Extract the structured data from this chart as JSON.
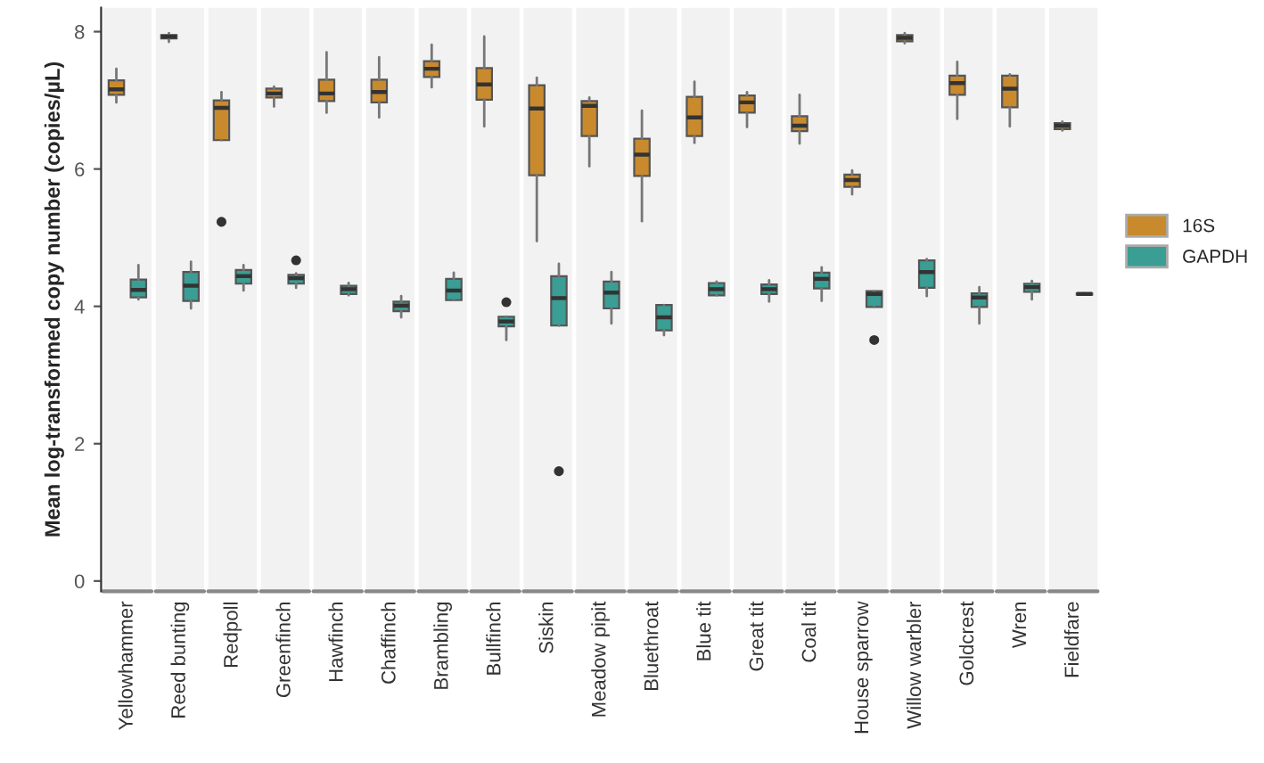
{
  "chart_data": {
    "type": "box",
    "ylabel": "Mean log-transformed copy number (copies/µL)",
    "categories": [
      "Yellowhammer",
      "Reed bunting",
      "Redpoll",
      "Greenfinch",
      "Hawfinch",
      "Chaffinch",
      "Brambling",
      "Bullfinch",
      "Siskin",
      "Meadow pipit",
      "Bluethroat",
      "Blue tit",
      "Great tit",
      "Coal tit",
      "House sparrow",
      "Willow warbler",
      "Goldcrest",
      "Wren",
      "Fieldfare"
    ],
    "ylim": [
      -0.15,
      8.35
    ],
    "yticks": [
      0,
      2,
      4,
      6,
      8
    ],
    "grid": false,
    "legend": "right",
    "series": [
      {
        "name": "16S",
        "color": "#c98a2e",
        "boxes": [
          {
            "low": 6.97,
            "q1": 7.08,
            "median": 7.16,
            "q3": 7.29,
            "high": 7.46
          },
          {
            "low": 7.85,
            "q1": 7.9,
            "median": 7.93,
            "q3": 7.95,
            "high": 7.98
          },
          {
            "low": 6.42,
            "q1": 6.42,
            "median": 6.89,
            "q3": 7.0,
            "high": 7.12,
            "outliers": [
              5.23
            ]
          },
          {
            "low": 6.91,
            "q1": 7.04,
            "median": 7.1,
            "q3": 7.17,
            "high": 7.2
          },
          {
            "low": 6.82,
            "q1": 6.99,
            "median": 7.1,
            "q3": 7.3,
            "high": 7.7
          },
          {
            "low": 6.75,
            "q1": 6.97,
            "median": 7.12,
            "q3": 7.3,
            "high": 7.63
          },
          {
            "low": 7.19,
            "q1": 7.34,
            "median": 7.46,
            "q3": 7.57,
            "high": 7.81
          },
          {
            "low": 6.62,
            "q1": 7.01,
            "median": 7.23,
            "q3": 7.47,
            "high": 7.93
          },
          {
            "low": 4.95,
            "q1": 5.91,
            "median": 6.88,
            "q3": 7.22,
            "high": 7.33
          },
          {
            "low": 6.04,
            "q1": 6.48,
            "median": 6.92,
            "q3": 6.99,
            "high": 7.04
          },
          {
            "low": 5.24,
            "q1": 5.9,
            "median": 6.21,
            "q3": 6.44,
            "high": 6.85
          },
          {
            "low": 6.38,
            "q1": 6.48,
            "median": 6.75,
            "q3": 7.05,
            "high": 7.27
          },
          {
            "low": 6.61,
            "q1": 6.82,
            "median": 6.97,
            "q3": 7.07,
            "high": 7.12
          },
          {
            "low": 6.37,
            "q1": 6.55,
            "median": 6.63,
            "q3": 6.77,
            "high": 7.08
          },
          {
            "low": 5.63,
            "q1": 5.74,
            "median": 5.84,
            "q3": 5.92,
            "high": 5.98
          },
          {
            "low": 7.83,
            "q1": 7.86,
            "median": 7.91,
            "q3": 7.95,
            "high": 7.98
          },
          {
            "low": 6.73,
            "q1": 7.08,
            "median": 7.25,
            "q3": 7.36,
            "high": 7.56
          },
          {
            "low": 6.62,
            "q1": 6.9,
            "median": 7.17,
            "q3": 7.36,
            "high": 7.38
          },
          {
            "low": 6.56,
            "q1": 6.58,
            "median": 6.63,
            "q3": 6.67,
            "high": 6.69
          }
        ]
      },
      {
        "name": "GAPDH",
        "color": "#3a9e94",
        "boxes": [
          {
            "low": 4.1,
            "q1": 4.13,
            "median": 4.24,
            "q3": 4.39,
            "high": 4.6
          },
          {
            "low": 3.97,
            "q1": 4.08,
            "median": 4.3,
            "q3": 4.5,
            "high": 4.65
          },
          {
            "low": 4.23,
            "q1": 4.33,
            "median": 4.44,
            "q3": 4.53,
            "high": 4.6
          },
          {
            "low": 4.27,
            "q1": 4.33,
            "median": 4.41,
            "q3": 4.46,
            "high": 4.48,
            "outliers": [
              4.67
            ]
          },
          {
            "low": 4.16,
            "q1": 4.18,
            "median": 4.25,
            "q3": 4.3,
            "high": 4.34
          },
          {
            "low": 3.84,
            "q1": 3.93,
            "median": 4.01,
            "q3": 4.07,
            "high": 4.15
          },
          {
            "low": 4.09,
            "q1": 4.09,
            "median": 4.23,
            "q3": 4.4,
            "high": 4.49
          },
          {
            "low": 3.51,
            "q1": 3.71,
            "median": 3.78,
            "q3": 3.85,
            "high": 3.85,
            "outliers": [
              4.06
            ]
          },
          {
            "low": 3.72,
            "q1": 3.72,
            "median": 4.12,
            "q3": 4.44,
            "high": 4.62,
            "outliers": [
              1.6
            ]
          },
          {
            "low": 3.75,
            "q1": 3.97,
            "median": 4.2,
            "q3": 4.36,
            "high": 4.5
          },
          {
            "low": 3.58,
            "q1": 3.65,
            "median": 3.84,
            "q3": 4.02,
            "high": 4.02
          },
          {
            "low": 4.16,
            "q1": 4.16,
            "median": 4.25,
            "q3": 4.34,
            "high": 4.36
          },
          {
            "low": 4.07,
            "q1": 4.18,
            "median": 4.25,
            "q3": 4.32,
            "high": 4.38
          },
          {
            "low": 4.08,
            "q1": 4.26,
            "median": 4.4,
            "q3": 4.49,
            "high": 4.57
          },
          {
            "low": 3.99,
            "q1": 3.99,
            "median": 4.18,
            "q3": 4.22,
            "high": 4.22,
            "outliers": [
              3.51
            ]
          },
          {
            "low": 4.15,
            "q1": 4.27,
            "median": 4.5,
            "q3": 4.67,
            "high": 4.69
          },
          {
            "low": 3.75,
            "q1": 3.99,
            "median": 4.13,
            "q3": 4.19,
            "high": 4.28
          },
          {
            "low": 4.1,
            "q1": 4.21,
            "median": 4.28,
            "q3": 4.33,
            "high": 4.37
          },
          {
            "low": 4.17,
            "q1": 4.17,
            "median": 4.18,
            "q3": 4.19,
            "high": 4.19
          }
        ]
      }
    ]
  }
}
